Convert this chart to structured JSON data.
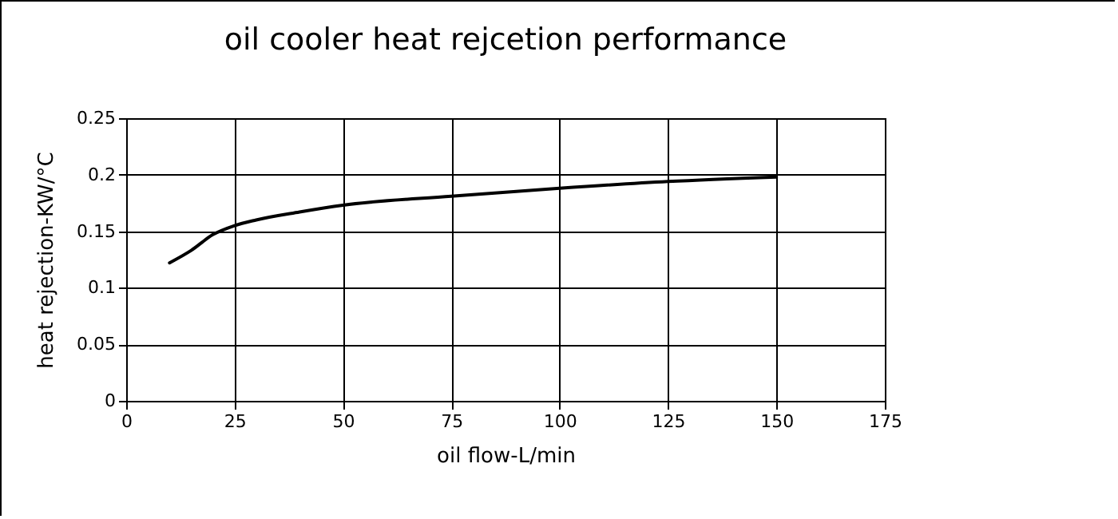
{
  "chart_data": {
    "type": "line",
    "title": "oil cooler heat rejcetion performance",
    "xlabel": "oil flow-L/min",
    "ylabel": "heat rejection-KW/°C",
    "x": [
      10,
      15,
      20,
      25,
      30,
      40,
      50,
      75,
      100,
      125,
      150
    ],
    "series": [
      {
        "color": "#000000",
        "values": [
          0.122,
          0.133,
          0.147,
          0.155,
          0.16,
          0.167,
          0.173,
          0.181,
          0.188,
          0.194,
          0.198
        ]
      }
    ],
    "xlim": [
      0,
      175
    ],
    "xticks": [
      0,
      25,
      50,
      75,
      100,
      125,
      150,
      175
    ],
    "ylim": [
      0,
      0.25
    ],
    "yticks": [
      0,
      0.05,
      0.1,
      0.15,
      0.2,
      0.25
    ],
    "grid": true,
    "marker": "none",
    "line_style": "solid"
  }
}
